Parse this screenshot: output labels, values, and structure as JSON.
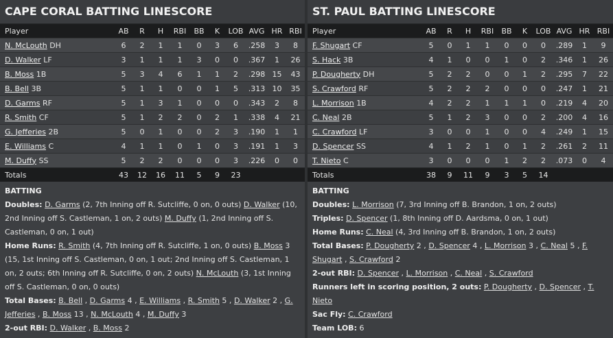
{
  "columns": [
    "Player",
    "AB",
    "R",
    "H",
    "RBI",
    "BB",
    "K",
    "LOB",
    "AVG",
    "HR",
    "RBI"
  ],
  "left": {
    "title": "CAPE CORAL BATTING LINESCORE",
    "rows": [
      {
        "name": "N. McLouth",
        "pos": "DH",
        "ab": "6",
        "r": "2",
        "h": "1",
        "rbi": "1",
        "bb": "0",
        "k": "3",
        "lob": "6",
        "avg": ".258",
        "hr": "3",
        "rbi2": "8"
      },
      {
        "name": "D. Walker",
        "pos": "LF",
        "ab": "3",
        "r": "1",
        "h": "1",
        "rbi": "1",
        "bb": "3",
        "k": "0",
        "lob": "0",
        "avg": ".367",
        "hr": "1",
        "rbi2": "26"
      },
      {
        "name": "B. Moss",
        "pos": "1B",
        "ab": "5",
        "r": "3",
        "h": "4",
        "rbi": "6",
        "bb": "1",
        "k": "1",
        "lob": "2",
        "avg": ".298",
        "hr": "15",
        "rbi2": "43"
      },
      {
        "name": "B. Bell",
        "pos": "3B",
        "ab": "5",
        "r": "1",
        "h": "1",
        "rbi": "0",
        "bb": "0",
        "k": "1",
        "lob": "5",
        "avg": ".313",
        "hr": "10",
        "rbi2": "35"
      },
      {
        "name": "D. Garms",
        "pos": "RF",
        "ab": "5",
        "r": "1",
        "h": "3",
        "rbi": "1",
        "bb": "0",
        "k": "0",
        "lob": "0",
        "avg": ".343",
        "hr": "2",
        "rbi2": "8"
      },
      {
        "name": "R. Smith",
        "pos": "CF",
        "ab": "5",
        "r": "1",
        "h": "2",
        "rbi": "2",
        "bb": "0",
        "k": "2",
        "lob": "1",
        "avg": ".338",
        "hr": "4",
        "rbi2": "21"
      },
      {
        "name": "G. Jefferies",
        "pos": "2B",
        "ab": "5",
        "r": "0",
        "h": "1",
        "rbi": "0",
        "bb": "0",
        "k": "2",
        "lob": "3",
        "avg": ".190",
        "hr": "1",
        "rbi2": "1"
      },
      {
        "name": "E. Williams",
        "pos": "C",
        "ab": "4",
        "r": "1",
        "h": "1",
        "rbi": "0",
        "bb": "1",
        "k": "0",
        "lob": "3",
        "avg": ".191",
        "hr": "1",
        "rbi2": "3"
      },
      {
        "name": "M. Duffy",
        "pos": "SS",
        "ab": "5",
        "r": "2",
        "h": "2",
        "rbi": "0",
        "bb": "0",
        "k": "0",
        "lob": "3",
        "avg": ".226",
        "hr": "0",
        "rbi2": "0"
      }
    ],
    "totals": {
      "label": "Totals",
      "ab": "43",
      "r": "12",
      "h": "16",
      "rbi": "11",
      "bb": "5",
      "k": "9",
      "lob": "23"
    },
    "batting_header": "BATTING",
    "doubles": {
      "label": "Doubles:",
      "p1": "D. Garms",
      "p1_text": " (2, 7th Inning off R. Sutcliffe, 0 on, 0 outs) ",
      "p2": "D. Walker",
      "p2_text": " (10, 2nd Inning off S. Castleman, 1 on, 2 outs) ",
      "p3": "M. Duffy",
      "p3_text": " (1, 2nd Inning off S. Castleman, 0 on, 1 out)"
    },
    "home_runs": {
      "label": "Home Runs:",
      "p1": "R. Smith",
      "p1_text": " (4, 7th Inning off R. Sutcliffe, 1 on, 0 outs) ",
      "p2": "B. Moss",
      "p2_text": " 3 (15, 1st Inning off S. Castleman, 0 on, 1 out; 2nd Inning off S. Castleman, 1 on, 2 outs; 6th Inning off R. Sutcliffe, 0 on, 2 outs) ",
      "p3": "N. McLouth",
      "p3_text": " (3, 1st Inning off S. Castleman, 0 on, 0 outs)"
    },
    "total_bases": {
      "label": "Total Bases:",
      "p1": "B. Bell",
      "s1": " , ",
      "p2": "D. Garms",
      "s2": " 4 , ",
      "p3": "E. Williams",
      "s3": " , ",
      "p4": "R. Smith",
      "s4": " 5 , ",
      "p5": "D. Walker",
      "s5": " 2 , ",
      "p6": "G. Jefferies",
      "s6": " , ",
      "p7": "B. Moss",
      "s7": " 13 , ",
      "p8": "N. McLouth",
      "s8": " 4 , ",
      "p9": "M. Duffy",
      "s9": " 3"
    },
    "two_out_rbi": {
      "label": "2-out RBI:",
      "p1": "D. Walker",
      "s1": " , ",
      "p2": "B. Moss",
      "s2": " 2"
    }
  },
  "right": {
    "title": "ST. PAUL BATTING LINESCORE",
    "rows": [
      {
        "name": "F. Shugart",
        "pos": "CF",
        "ab": "5",
        "r": "0",
        "h": "1",
        "rbi": "1",
        "bb": "0",
        "k": "0",
        "lob": "0",
        "avg": ".289",
        "hr": "1",
        "rbi2": "9"
      },
      {
        "name": "S. Hack",
        "pos": "3B",
        "ab": "4",
        "r": "1",
        "h": "0",
        "rbi": "0",
        "bb": "1",
        "k": "0",
        "lob": "2",
        "avg": ".346",
        "hr": "1",
        "rbi2": "26"
      },
      {
        "name": "P. Dougherty",
        "pos": "DH",
        "ab": "5",
        "r": "2",
        "h": "2",
        "rbi": "0",
        "bb": "0",
        "k": "1",
        "lob": "2",
        "avg": ".295",
        "hr": "7",
        "rbi2": "22"
      },
      {
        "name": "S. Crawford",
        "pos": "RF",
        "ab": "5",
        "r": "2",
        "h": "2",
        "rbi": "2",
        "bb": "0",
        "k": "0",
        "lob": "0",
        "avg": ".247",
        "hr": "1",
        "rbi2": "21"
      },
      {
        "name": "L. Morrison",
        "pos": "1B",
        "ab": "4",
        "r": "2",
        "h": "2",
        "rbi": "1",
        "bb": "1",
        "k": "1",
        "lob": "0",
        "avg": ".219",
        "hr": "4",
        "rbi2": "20"
      },
      {
        "name": "C. Neal",
        "pos": "2B",
        "ab": "5",
        "r": "1",
        "h": "2",
        "rbi": "3",
        "bb": "0",
        "k": "0",
        "lob": "2",
        "avg": ".200",
        "hr": "4",
        "rbi2": "16"
      },
      {
        "name": "C. Crawford",
        "pos": "LF",
        "ab": "3",
        "r": "0",
        "h": "0",
        "rbi": "1",
        "bb": "0",
        "k": "0",
        "lob": "4",
        "avg": ".249",
        "hr": "1",
        "rbi2": "15"
      },
      {
        "name": "D. Spencer",
        "pos": "SS",
        "ab": "4",
        "r": "1",
        "h": "2",
        "rbi": "1",
        "bb": "0",
        "k": "1",
        "lob": "2",
        "avg": ".261",
        "hr": "2",
        "rbi2": "11"
      },
      {
        "name": "T. Nieto",
        "pos": "C",
        "ab": "3",
        "r": "0",
        "h": "0",
        "rbi": "0",
        "bb": "1",
        "k": "2",
        "lob": "2",
        "avg": ".073",
        "hr": "0",
        "rbi2": "4"
      }
    ],
    "totals": {
      "label": "Totals",
      "ab": "38",
      "r": "9",
      "h": "11",
      "rbi": "9",
      "bb": "3",
      "k": "5",
      "lob": "14"
    },
    "batting_header": "BATTING",
    "doubles": {
      "label": "Doubles:",
      "p1": "L. Morrison",
      "p1_text": " (7, 3rd Inning off B. Brandon, 1 on, 2 outs)"
    },
    "triples": {
      "label": "Triples:",
      "p1": "D. Spencer",
      "p1_text": " (1, 8th Inning off D. Aardsma, 0 on, 1 out)"
    },
    "home_runs": {
      "label": "Home Runs:",
      "p1": "C. Neal",
      "p1_text": " (4, 3rd Inning off B. Brandon, 1 on, 2 outs)"
    },
    "total_bases": {
      "label": "Total Bases:",
      "p1": "P. Dougherty",
      "s1": " 2 , ",
      "p2": "D. Spencer",
      "s2": " 4 , ",
      "p3": "L. Morrison",
      "s3": " 3 , ",
      "p4": "C. Neal",
      "s4": " 5 , ",
      "p5": "F. Shugart",
      "s5": " , ",
      "p6": "S. Crawford",
      "s6": " 2"
    },
    "two_out_rbi": {
      "label": "2-out RBI:",
      "p1": "D. Spencer",
      "s1": " , ",
      "p2": "L. Morrison",
      "s2": " , ",
      "p3": "C. Neal",
      "s3": " , ",
      "p4": "S. Crawford",
      "s4": ""
    },
    "risp": {
      "label": "Runners left in scoring position, 2 outs:",
      "p1": "P. Dougherty",
      "s1": " , ",
      "p2": "D. Spencer",
      "s2": " , ",
      "p3": "T. Nieto",
      "s3": ""
    },
    "sac_fly": {
      "label": "Sac Fly:",
      "p1": "C. Crawford"
    },
    "team_lob": {
      "label": "Team LOB:",
      "value": " 6"
    }
  }
}
